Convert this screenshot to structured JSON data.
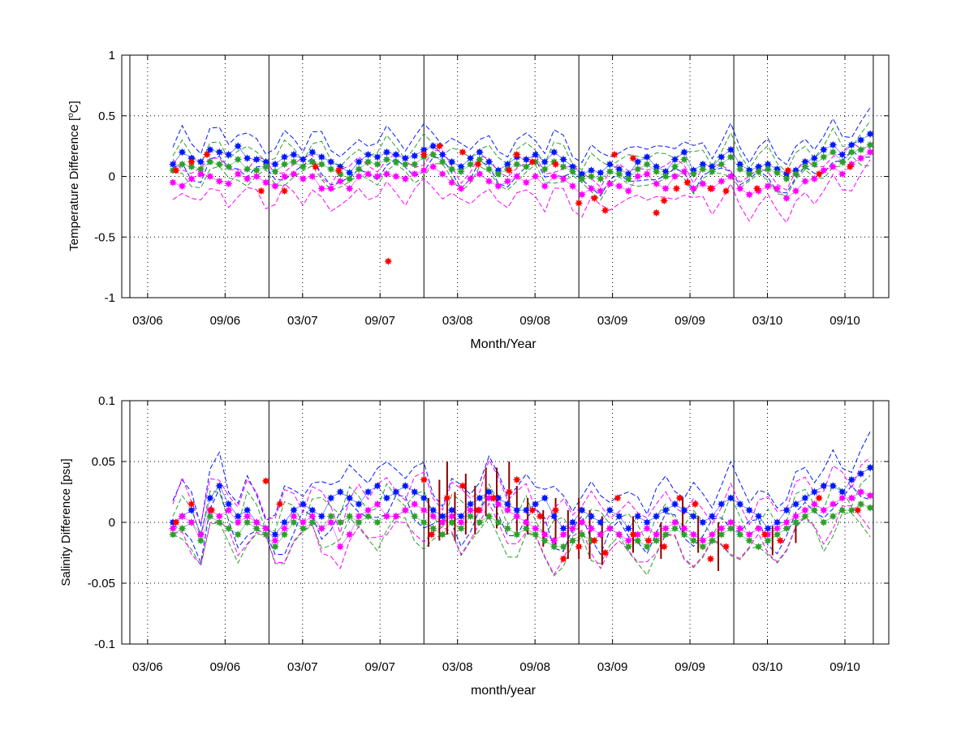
{
  "colors": {
    "blue": "#0018ff",
    "green": "#2ca02c",
    "magenta": "#ff00ff",
    "red": "#ff0000",
    "darkred": "#8b0000",
    "frame": "#000000",
    "grid": "#000000"
  },
  "chart_data": [
    {
      "type": "scatter",
      "title": "",
      "xlabel": "Month/Year",
      "ylabel": "Temperature Difference [°C]",
      "ylabel_main": "Temperature Difference [",
      "ylabel_sup": "o",
      "ylabel_tail": "C]",
      "xlim": [
        2006.0,
        2010.95
      ],
      "ylim": [
        -1,
        1
      ],
      "grid": true,
      "xticks": [
        {
          "t": 2006.167,
          "label": "03/06"
        },
        {
          "t": 2006.667,
          "label": "09/06"
        },
        {
          "t": 2007.167,
          "label": "03/07"
        },
        {
          "t": 2007.667,
          "label": "09/07"
        },
        {
          "t": 2008.167,
          "label": "03/08"
        },
        {
          "t": 2008.667,
          "label": "09/08"
        },
        {
          "t": 2009.167,
          "label": "03/09"
        },
        {
          "t": 2009.667,
          "label": "09/09"
        },
        {
          "t": 2010.167,
          "label": "03/10"
        },
        {
          "t": 2010.667,
          "label": "09/10"
        }
      ],
      "yticks": [
        {
          "v": 1,
          "label": "1"
        },
        {
          "v": 0.5,
          "label": "0.5"
        },
        {
          "v": 0,
          "label": "0"
        },
        {
          "v": -0.5,
          "label": "-0.5"
        },
        {
          "v": -1,
          "label": "-1"
        }
      ],
      "vlines": [
        2006.95,
        2007.95,
        2008.95,
        2009.95,
        2010.85
      ],
      "t_start": 2006.33,
      "t_end": 2010.83,
      "series": [
        {
          "color": "blue",
          "marker": true,
          "values": [
            0.1,
            0.2,
            0.15,
            0.12,
            0.22,
            0.2,
            0.18,
            0.25,
            0.15,
            0.14,
            0.12,
            0.1,
            0.16,
            0.18,
            0.14,
            0.2,
            0.16,
            0.12,
            0.08,
            0.03,
            0.12,
            0.18,
            0.16,
            0.2,
            0.18,
            0.15,
            0.17,
            0.22,
            0.25,
            0.18,
            0.12,
            0.08,
            0.15,
            0.2,
            0.12,
            0.05,
            0.1,
            0.16,
            0.14,
            0.18,
            0.12,
            0.2,
            0.14,
            0.08,
            0.02,
            0.05,
            0.03,
            0.1,
            0.06,
            0.02,
            0.12,
            0.16,
            0.08,
            0.04,
            0.14,
            0.2,
            0.05,
            0.1,
            0.08,
            0.16,
            0.22,
            0.1,
            0.05,
            0.08,
            0.1,
            0.06,
            0.02,
            0.05,
            0.12,
            0.15,
            0.22,
            0.26,
            0.18,
            0.26,
            0.3,
            0.35
          ]
        },
        {
          "color": "green",
          "marker": true,
          "values": [
            0.05,
            0.1,
            0.08,
            0.06,
            0.12,
            0.1,
            0.08,
            0.14,
            0.06,
            0.05,
            0.08,
            0.04,
            0.1,
            0.12,
            0.08,
            0.12,
            0.1,
            0.06,
            0.02,
            -0.02,
            0.06,
            0.12,
            0.1,
            0.14,
            0.12,
            0.1,
            0.1,
            0.16,
            0.18,
            0.12,
            0.06,
            0.04,
            0.1,
            0.14,
            0.06,
            0.02,
            0.06,
            0.1,
            0.08,
            0.12,
            0.06,
            0.12,
            0.08,
            0.04,
            -0.02,
            0.0,
            -0.02,
            0.04,
            0.02,
            -0.02,
            0.06,
            0.1,
            0.04,
            0.0,
            0.08,
            0.14,
            0.02,
            0.06,
            0.04,
            0.1,
            0.16,
            0.06,
            0.02,
            0.04,
            0.06,
            0.03,
            -0.02,
            0.02,
            0.08,
            0.1,
            0.16,
            0.2,
            0.12,
            0.2,
            0.22,
            0.26
          ]
        },
        {
          "color": "magenta",
          "marker": true,
          "values": [
            -0.05,
            -0.08,
            -0.02,
            0.02,
            0.0,
            -0.04,
            -0.06,
            0.02,
            -0.02,
            0.0,
            -0.05,
            -0.08,
            0.0,
            0.02,
            -0.02,
            0.0,
            -0.1,
            -0.1,
            -0.04,
            -0.1,
            0.0,
            0.02,
            0.0,
            0.02,
            0.0,
            -0.02,
            0.02,
            0.05,
            0.08,
            0.02,
            -0.05,
            -0.1,
            -0.02,
            0.02,
            -0.04,
            -0.08,
            -0.04,
            0.0,
            -0.05,
            0.0,
            -0.08,
            0.0,
            -0.02,
            -0.08,
            -0.15,
            -0.1,
            -0.12,
            -0.06,
            -0.08,
            -0.12,
            0.0,
            0.02,
            -0.06,
            -0.1,
            0.0,
            0.04,
            -0.1,
            -0.06,
            -0.1,
            -0.04,
            0.0,
            -0.1,
            -0.15,
            -0.12,
            -0.08,
            -0.1,
            -0.18,
            -0.12,
            -0.04,
            -0.02,
            0.05,
            0.08,
            0.02,
            0.1,
            0.15,
            0.2
          ]
        },
        {
          "color": "red",
          "marker": true,
          "dots": [
            [
              2006.35,
              0.05
            ],
            [
              2006.45,
              0.12
            ],
            [
              2006.55,
              0.18
            ],
            [
              2006.9,
              -0.12
            ],
            [
              2007.05,
              -0.12
            ],
            [
              2007.25,
              0.08
            ],
            [
              2007.4,
              0.05
            ],
            [
              2007.72,
              -0.7
            ],
            [
              2007.95,
              0.18
            ],
            [
              2008.05,
              0.25
            ],
            [
              2008.2,
              0.2
            ],
            [
              2008.3,
              0.1
            ],
            [
              2008.5,
              0.05
            ],
            [
              2008.55,
              0.18
            ],
            [
              2008.65,
              0.12
            ],
            [
              2008.8,
              0.1
            ],
            [
              2008.95,
              -0.22
            ],
            [
              2009.05,
              -0.18
            ],
            [
              2009.12,
              -0.28
            ],
            [
              2009.18,
              0.18
            ],
            [
              2009.3,
              0.15
            ],
            [
              2009.45,
              -0.3
            ],
            [
              2009.5,
              -0.2
            ],
            [
              2009.58,
              -0.1
            ],
            [
              2009.65,
              -0.05
            ],
            [
              2009.8,
              -0.1
            ],
            [
              2009.9,
              -0.12
            ],
            [
              2010.1,
              -0.1
            ],
            [
              2010.3,
              0.05
            ],
            [
              2010.5,
              0.02
            ],
            [
              2010.7,
              0.08
            ]
          ]
        }
      ],
      "bands": [
        {
          "color": "blue",
          "offset": 0.14
        },
        {
          "color": "green",
          "offset": 0.12
        },
        {
          "color": "magenta",
          "offset": -0.14
        }
      ]
    },
    {
      "type": "scatter",
      "title": "",
      "xlabel": "month/year",
      "ylabel": "Salinity Difference [psu]",
      "xlim": [
        2006.0,
        2010.95
      ],
      "ylim": [
        -0.1,
        0.1
      ],
      "grid": true,
      "xticks": [
        {
          "t": 2006.167,
          "label": "03/06"
        },
        {
          "t": 2006.667,
          "label": "09/06"
        },
        {
          "t": 2007.167,
          "label": "03/07"
        },
        {
          "t": 2007.667,
          "label": "09/07"
        },
        {
          "t": 2008.167,
          "label": "03/08"
        },
        {
          "t": 2008.667,
          "label": "09/08"
        },
        {
          "t": 2009.167,
          "label": "03/09"
        },
        {
          "t": 2009.667,
          "label": "09/09"
        },
        {
          "t": 2010.167,
          "label": "03/10"
        },
        {
          "t": 2010.667,
          "label": "09/10"
        }
      ],
      "yticks": [
        {
          "v": 0.1,
          "label": "0.1"
        },
        {
          "v": 0.05,
          "label": "0.05"
        },
        {
          "v": 0,
          "label": "0"
        },
        {
          "v": -0.05,
          "label": "-0.05"
        },
        {
          "v": -0.1,
          "label": "-0.1"
        }
      ],
      "vlines": [
        2006.95,
        2007.95,
        2008.95,
        2009.95,
        2010.85
      ],
      "t_start": 2006.33,
      "t_end": 2010.83,
      "series": [
        {
          "color": "blue",
          "marker": true,
          "values": [
            0.0,
            0.005,
            0.01,
            -0.01,
            0.02,
            0.03,
            0.015,
            0.005,
            0.01,
            0.0,
            -0.005,
            -0.01,
            0.0,
            0.01,
            0.015,
            0.01,
            0.005,
            0.02,
            0.025,
            0.02,
            0.015,
            0.025,
            0.03,
            0.02,
            0.025,
            0.03,
            0.025,
            0.02,
            0.01,
            0.005,
            0.01,
            0.005,
            0.015,
            0.02,
            0.025,
            0.02,
            0.015,
            0.01,
            0.01,
            0.015,
            0.02,
            0.005,
            -0.005,
            0.0,
            0.01,
            0.005,
            0.0,
            0.01,
            0.005,
            -0.005,
            0.005,
            0.0,
            0.005,
            0.01,
            0.015,
            0.01,
            0.005,
            0.0,
            0.005,
            0.015,
            0.02,
            0.015,
            0.01,
            0.005,
            -0.005,
            0.0,
            0.01,
            0.015,
            0.02,
            0.025,
            0.03,
            0.03,
            0.025,
            0.035,
            0.04,
            0.045
          ]
        },
        {
          "color": "green",
          "marker": true,
          "values": [
            -0.01,
            -0.005,
            0.0,
            -0.015,
            0.005,
            0.0,
            -0.005,
            -0.01,
            0.0,
            -0.005,
            -0.01,
            -0.02,
            -0.01,
            0.0,
            -0.005,
            0.0,
            -0.005,
            0.005,
            0.0,
            0.005,
            0.0,
            0.005,
            0.0,
            0.005,
            0.005,
            0.01,
            0.005,
            0.0,
            -0.005,
            -0.01,
            0.0,
            -0.005,
            0.005,
            0.0,
            0.005,
            0.0,
            -0.005,
            -0.01,
            -0.005,
            -0.01,
            -0.015,
            -0.02,
            -0.02,
            -0.015,
            -0.01,
            -0.015,
            -0.01,
            -0.005,
            -0.01,
            -0.02,
            -0.015,
            -0.02,
            -0.015,
            -0.01,
            -0.005,
            -0.01,
            -0.015,
            -0.02,
            -0.015,
            -0.01,
            -0.005,
            -0.01,
            -0.015,
            -0.02,
            -0.015,
            -0.01,
            -0.005,
            0.0,
            0.005,
            0.01,
            0.0,
            0.005,
            0.01,
            0.01,
            0.015,
            0.012
          ]
        },
        {
          "color": "magenta",
          "marker": true,
          "values": [
            -0.005,
            0.005,
            0.0,
            -0.01,
            0.01,
            0.005,
            0.01,
            0.0,
            0.005,
            0.0,
            -0.005,
            -0.015,
            -0.005,
            0.005,
            0.0,
            0.005,
            -0.005,
            0.0,
            -0.02,
            -0.01,
            0.005,
            0.01,
            0.015,
            0.005,
            0.005,
            0.01,
            0.015,
            0.01,
            0.005,
            0.0,
            0.005,
            0.0,
            0.01,
            0.01,
            0.02,
            0.015,
            0.01,
            0.005,
            0.0,
            -0.005,
            -0.01,
            -0.015,
            -0.01,
            -0.005,
            0.0,
            -0.005,
            -0.01,
            -0.005,
            -0.01,
            -0.015,
            -0.01,
            -0.005,
            -0.01,
            -0.005,
            0.0,
            -0.005,
            -0.01,
            -0.015,
            -0.01,
            -0.005,
            0.0,
            -0.005,
            -0.01,
            -0.005,
            -0.01,
            -0.005,
            0.0,
            0.005,
            0.01,
            0.015,
            0.01,
            0.015,
            0.02,
            0.02,
            0.025,
            0.022
          ]
        },
        {
          "color": "red",
          "marker": true,
          "dots": [
            [
              2006.35,
              0.0
            ],
            [
              2006.45,
              0.015
            ],
            [
              2006.58,
              0.01
            ],
            [
              2006.93,
              0.034
            ],
            [
              2007.02,
              0.015
            ],
            [
              2007.95,
              0.035
            ],
            [
              2008.0,
              -0.01
            ],
            [
              2008.1,
              0.02
            ],
            [
              2008.2,
              0.03
            ],
            [
              2008.3,
              0.01
            ],
            [
              2008.4,
              0.02
            ],
            [
              2008.5,
              0.025
            ],
            [
              2008.55,
              0.035
            ],
            [
              2008.65,
              0.01
            ],
            [
              2008.7,
              0.005
            ],
            [
              2008.8,
              0.01
            ],
            [
              2008.85,
              -0.03
            ],
            [
              2008.95,
              -0.02
            ],
            [
              2009.05,
              -0.015
            ],
            [
              2009.12,
              -0.025
            ],
            [
              2009.2,
              0.02
            ],
            [
              2009.3,
              -0.01
            ],
            [
              2009.4,
              -0.015
            ],
            [
              2009.5,
              -0.02
            ],
            [
              2009.6,
              0.02
            ],
            [
              2009.7,
              0.015
            ],
            [
              2009.8,
              -0.03
            ],
            [
              2009.9,
              -0.02
            ],
            [
              2010.15,
              -0.01
            ],
            [
              2010.25,
              -0.015
            ],
            [
              2010.5,
              0.02
            ],
            [
              2010.75,
              0.01
            ]
          ]
        },
        {
          "color": "darkred",
          "errorbars": [
            [
              2007.98,
              0.0,
              0.02
            ],
            [
              2008.05,
              0.01,
              0.025
            ],
            [
              2008.1,
              0.02,
              0.03
            ],
            [
              2008.15,
              0.005,
              0.02
            ],
            [
              2008.22,
              0.015,
              0.025
            ],
            [
              2008.28,
              0.01,
              0.02
            ],
            [
              2008.35,
              0.025,
              0.02
            ],
            [
              2008.42,
              0.02,
              0.025
            ],
            [
              2008.5,
              0.03,
              0.02
            ],
            [
              2008.55,
              0.01,
              0.02
            ],
            [
              2008.62,
              0.005,
              0.015
            ],
            [
              2008.72,
              -0.005,
              0.015
            ],
            [
              2008.8,
              0.0,
              0.02
            ],
            [
              2008.88,
              -0.01,
              0.02
            ],
            [
              2008.95,
              -0.005,
              0.025
            ],
            [
              2009.02,
              -0.01,
              0.02
            ],
            [
              2009.1,
              -0.015,
              0.02
            ],
            [
              2009.3,
              -0.01,
              0.015
            ],
            [
              2009.48,
              -0.015,
              0.015
            ],
            [
              2009.62,
              0.005,
              0.015
            ],
            [
              2009.72,
              -0.01,
              0.015
            ],
            [
              2009.85,
              -0.02,
              0.02
            ],
            [
              2010.2,
              -0.015,
              0.012
            ],
            [
              2010.35,
              -0.005,
              0.012
            ]
          ]
        }
      ],
      "bands": [
        {
          "color": "blue",
          "offset": 0.018
        },
        {
          "color": "green",
          "offset": 0.015
        },
        {
          "color": "magenta",
          "offset": 0.02
        }
      ]
    }
  ]
}
